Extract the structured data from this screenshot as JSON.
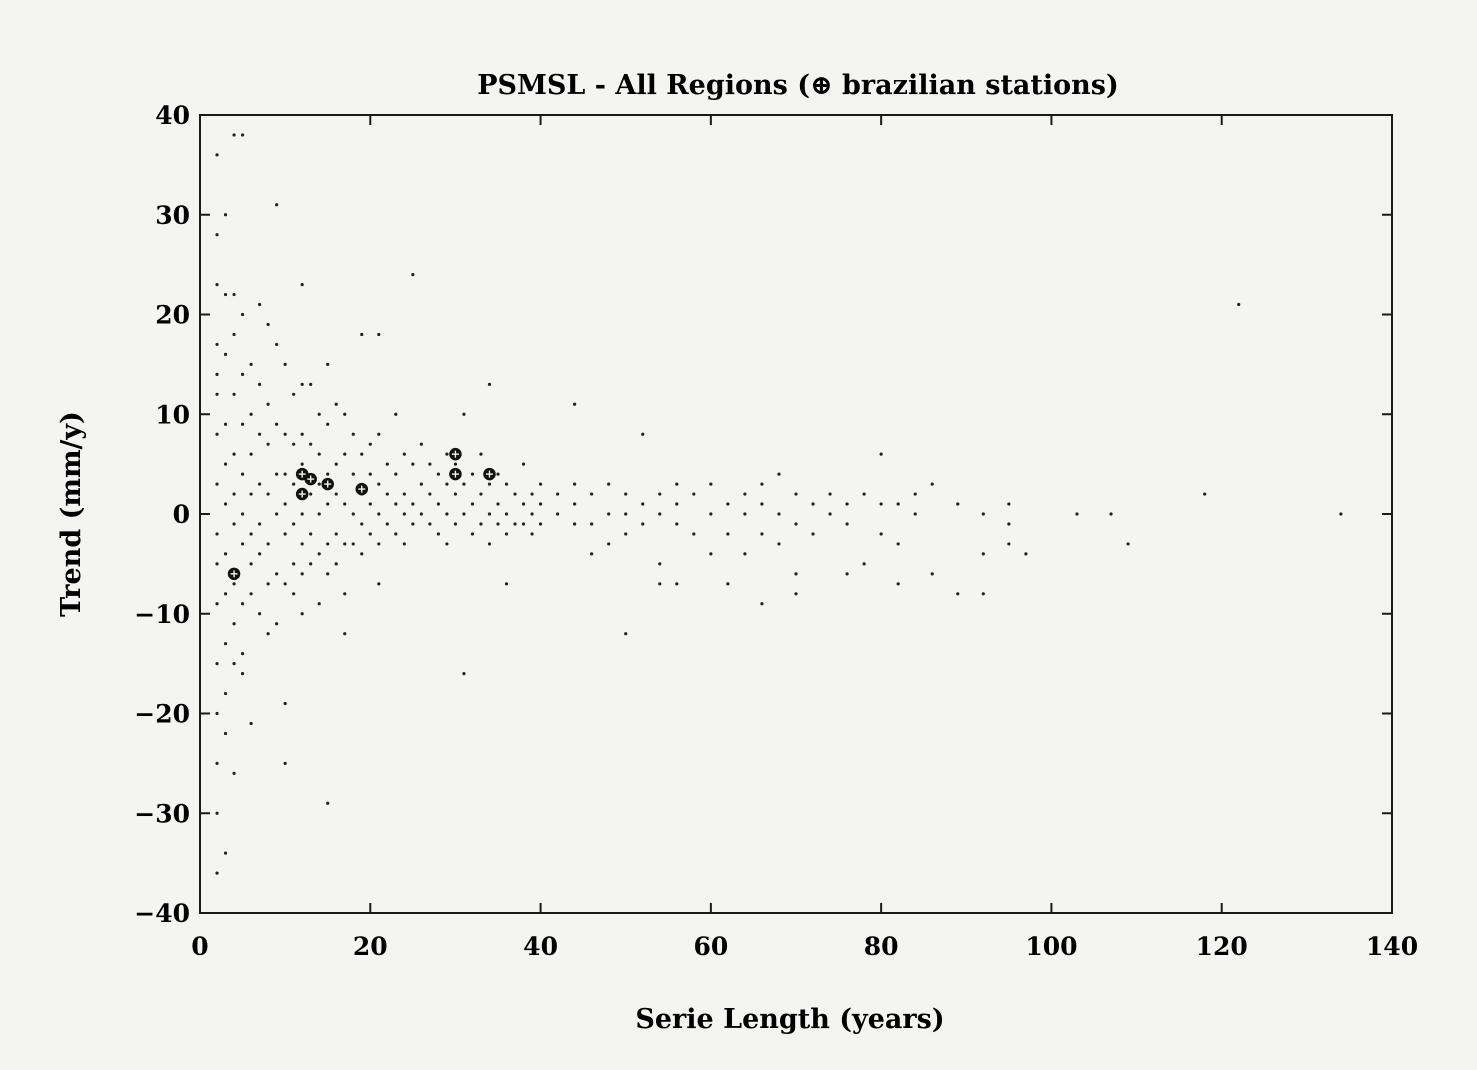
{
  "chart_data": {
    "type": "scatter",
    "title": "PSMSL - All Regions (⊕ brazilian stations)",
    "xlabel": "Serie Length (years)",
    "ylabel": "Trend (mm/y)",
    "xlim": [
      0,
      140
    ],
    "ylim": [
      -40,
      40
    ],
    "xticks": [
      0,
      20,
      40,
      60,
      80,
      100,
      120,
      140
    ],
    "yticks": [
      -40,
      -30,
      -20,
      -10,
      0,
      10,
      20,
      30,
      40
    ],
    "xtick_labels": [
      "0",
      "20",
      "40",
      "60",
      "80",
      "100",
      "120",
      "140"
    ],
    "ytick_labels": [
      "−40",
      "−30",
      "−20",
      "−10",
      "0",
      "10",
      "20",
      "30",
      "40"
    ],
    "grid": false,
    "legend": "none",
    "series": [
      {
        "marker": "dot",
        "points": [
          [
            2,
            36
          ],
          [
            2,
            28
          ],
          [
            2,
            23
          ],
          [
            2,
            17
          ],
          [
            2,
            14
          ],
          [
            2,
            12
          ],
          [
            2,
            8
          ],
          [
            2,
            3
          ],
          [
            2,
            -2
          ],
          [
            2,
            -5
          ],
          [
            2,
            -9
          ],
          [
            2,
            -15
          ],
          [
            2,
            -20
          ],
          [
            2,
            -25
          ],
          [
            2,
            -30
          ],
          [
            2,
            -36
          ],
          [
            3,
            30
          ],
          [
            3,
            22
          ],
          [
            3,
            16
          ],
          [
            3,
            9
          ],
          [
            3,
            5
          ],
          [
            3,
            1
          ],
          [
            3,
            -4
          ],
          [
            3,
            -8
          ],
          [
            3,
            -13
          ],
          [
            3,
            -18
          ],
          [
            3,
            -22
          ],
          [
            3,
            -34
          ],
          [
            4,
            38
          ],
          [
            4,
            22
          ],
          [
            4,
            18
          ],
          [
            4,
            12
          ],
          [
            4,
            6
          ],
          [
            4,
            2
          ],
          [
            4,
            -1
          ],
          [
            4,
            -7
          ],
          [
            4,
            -11
          ],
          [
            4,
            -15
          ],
          [
            4,
            -26
          ],
          [
            5,
            38
          ],
          [
            5,
            20
          ],
          [
            5,
            14
          ],
          [
            5,
            9
          ],
          [
            5,
            4
          ],
          [
            5,
            0
          ],
          [
            5,
            -3
          ],
          [
            5,
            -9
          ],
          [
            5,
            -14
          ],
          [
            5,
            -16
          ],
          [
            6,
            15
          ],
          [
            6,
            10
          ],
          [
            6,
            6
          ],
          [
            6,
            2
          ],
          [
            6,
            -2
          ],
          [
            6,
            -5
          ],
          [
            6,
            -8
          ],
          [
            6,
            -21
          ],
          [
            7,
            21
          ],
          [
            7,
            13
          ],
          [
            7,
            8
          ],
          [
            7,
            3
          ],
          [
            7,
            -1
          ],
          [
            7,
            -4
          ],
          [
            7,
            -10
          ],
          [
            8,
            19
          ],
          [
            8,
            11
          ],
          [
            8,
            7
          ],
          [
            8,
            2
          ],
          [
            8,
            -3
          ],
          [
            8,
            -7
          ],
          [
            8,
            -12
          ],
          [
            9,
            31
          ],
          [
            9,
            17
          ],
          [
            9,
            9
          ],
          [
            9,
            4
          ],
          [
            9,
            0
          ],
          [
            9,
            -6
          ],
          [
            9,
            -11
          ],
          [
            10,
            15
          ],
          [
            10,
            8
          ],
          [
            10,
            4
          ],
          [
            10,
            1
          ],
          [
            10,
            -2
          ],
          [
            10,
            -7
          ],
          [
            10,
            -19
          ],
          [
            10,
            -25
          ],
          [
            11,
            12
          ],
          [
            11,
            7
          ],
          [
            11,
            3
          ],
          [
            11,
            -1
          ],
          [
            11,
            -5
          ],
          [
            11,
            -8
          ],
          [
            12,
            23
          ],
          [
            12,
            13
          ],
          [
            12,
            8
          ],
          [
            12,
            5
          ],
          [
            12,
            0
          ],
          [
            12,
            -3
          ],
          [
            12,
            -6
          ],
          [
            12,
            -10
          ],
          [
            13,
            13
          ],
          [
            13,
            7
          ],
          [
            13,
            2
          ],
          [
            13,
            -2
          ],
          [
            13,
            -5
          ],
          [
            14,
            10
          ],
          [
            14,
            6
          ],
          [
            14,
            3
          ],
          [
            14,
            0
          ],
          [
            14,
            -4
          ],
          [
            14,
            -9
          ],
          [
            15,
            15
          ],
          [
            15,
            9
          ],
          [
            15,
            4
          ],
          [
            15,
            1
          ],
          [
            15,
            -3
          ],
          [
            15,
            -6
          ],
          [
            15,
            -29
          ],
          [
            16,
            11
          ],
          [
            16,
            5
          ],
          [
            16,
            2
          ],
          [
            16,
            -2
          ],
          [
            16,
            -5
          ],
          [
            17,
            10
          ],
          [
            17,
            6
          ],
          [
            17,
            1
          ],
          [
            17,
            -3
          ],
          [
            17,
            -8
          ],
          [
            17,
            -12
          ],
          [
            18,
            8
          ],
          [
            18,
            4
          ],
          [
            18,
            0
          ],
          [
            18,
            -3
          ],
          [
            19,
            18
          ],
          [
            19,
            6
          ],
          [
            19,
            2
          ],
          [
            19,
            -1
          ],
          [
            19,
            -4
          ],
          [
            20,
            7
          ],
          [
            20,
            4
          ],
          [
            20,
            1
          ],
          [
            20,
            -2
          ],
          [
            21,
            18
          ],
          [
            21,
            8
          ],
          [
            21,
            3
          ],
          [
            21,
            0
          ],
          [
            21,
            -3
          ],
          [
            21,
            -7
          ],
          [
            22,
            5
          ],
          [
            22,
            2
          ],
          [
            22,
            -1
          ],
          [
            23,
            10
          ],
          [
            23,
            4
          ],
          [
            23,
            1
          ],
          [
            23,
            -2
          ],
          [
            24,
            6
          ],
          [
            24,
            2
          ],
          [
            24,
            0
          ],
          [
            24,
            -3
          ],
          [
            25,
            24
          ],
          [
            25,
            5
          ],
          [
            25,
            1
          ],
          [
            25,
            -1
          ],
          [
            26,
            7
          ],
          [
            26,
            3
          ],
          [
            26,
            0
          ],
          [
            27,
            5
          ],
          [
            27,
            2
          ],
          [
            27,
            -1
          ],
          [
            28,
            4
          ],
          [
            28,
            1
          ],
          [
            28,
            -2
          ],
          [
            29,
            6
          ],
          [
            29,
            3
          ],
          [
            29,
            0
          ],
          [
            29,
            -3
          ],
          [
            30,
            5
          ],
          [
            30,
            2
          ],
          [
            30,
            -1
          ],
          [
            31,
            10
          ],
          [
            31,
            3
          ],
          [
            31,
            0
          ],
          [
            31,
            -16
          ],
          [
            32,
            4
          ],
          [
            32,
            1
          ],
          [
            32,
            -2
          ],
          [
            33,
            6
          ],
          [
            33,
            2
          ],
          [
            33,
            -1
          ],
          [
            34,
            13
          ],
          [
            34,
            3
          ],
          [
            34,
            0
          ],
          [
            34,
            -3
          ],
          [
            35,
            4
          ],
          [
            35,
            1
          ],
          [
            35,
            -1
          ],
          [
            36,
            3
          ],
          [
            36,
            0
          ],
          [
            36,
            -2
          ],
          [
            36,
            -7
          ],
          [
            37,
            2
          ],
          [
            37,
            -1
          ],
          [
            38,
            5
          ],
          [
            38,
            1
          ],
          [
            38,
            -1
          ],
          [
            39,
            2
          ],
          [
            39,
            0
          ],
          [
            39,
            -2
          ],
          [
            40,
            3
          ],
          [
            40,
            1
          ],
          [
            40,
            -1
          ],
          [
            42,
            2
          ],
          [
            42,
            0
          ],
          [
            44,
            3
          ],
          [
            44,
            1
          ],
          [
            44,
            -1
          ],
          [
            44,
            11
          ],
          [
            46,
            2
          ],
          [
            46,
            -1
          ],
          [
            46,
            -4
          ],
          [
            48,
            3
          ],
          [
            48,
            0
          ],
          [
            48,
            -3
          ],
          [
            50,
            2
          ],
          [
            50,
            0
          ],
          [
            50,
            -2
          ],
          [
            50,
            -12
          ],
          [
            52,
            1
          ],
          [
            52,
            -1
          ],
          [
            52,
            8
          ],
          [
            54,
            2
          ],
          [
            54,
            0
          ],
          [
            54,
            -5
          ],
          [
            54,
            -7
          ],
          [
            56,
            3
          ],
          [
            56,
            1
          ],
          [
            56,
            -1
          ],
          [
            56,
            -7
          ],
          [
            58,
            2
          ],
          [
            58,
            -2
          ],
          [
            60,
            3
          ],
          [
            60,
            0
          ],
          [
            60,
            -4
          ],
          [
            62,
            1
          ],
          [
            62,
            -2
          ],
          [
            62,
            -7
          ],
          [
            64,
            2
          ],
          [
            64,
            0
          ],
          [
            64,
            -4
          ],
          [
            66,
            3
          ],
          [
            66,
            1
          ],
          [
            66,
            -2
          ],
          [
            66,
            -9
          ],
          [
            68,
            4
          ],
          [
            68,
            0
          ],
          [
            68,
            -3
          ],
          [
            70,
            2
          ],
          [
            70,
            -1
          ],
          [
            70,
            -6
          ],
          [
            70,
            -8
          ],
          [
            72,
            1
          ],
          [
            72,
            -2
          ],
          [
            74,
            2
          ],
          [
            74,
            0
          ],
          [
            76,
            1
          ],
          [
            76,
            -1
          ],
          [
            76,
            -6
          ],
          [
            78,
            2
          ],
          [
            78,
            -5
          ],
          [
            80,
            6
          ],
          [
            80,
            1
          ],
          [
            80,
            -2
          ],
          [
            82,
            1
          ],
          [
            82,
            -3
          ],
          [
            82,
            -7
          ],
          [
            84,
            2
          ],
          [
            84,
            0
          ],
          [
            86,
            3
          ],
          [
            86,
            -6
          ],
          [
            89,
            1
          ],
          [
            89,
            -8
          ],
          [
            92,
            0
          ],
          [
            92,
            -4
          ],
          [
            92,
            -8
          ],
          [
            95,
            1
          ],
          [
            95,
            -1
          ],
          [
            95,
            -3
          ],
          [
            97,
            -4
          ],
          [
            103,
            0
          ],
          [
            107,
            0
          ],
          [
            109,
            -3
          ],
          [
            118,
            2
          ],
          [
            122,
            21
          ],
          [
            134,
            0
          ]
        ]
      },
      {
        "marker": "circled-plus",
        "points": [
          [
            4,
            -6
          ],
          [
            12,
            4
          ],
          [
            12,
            2
          ],
          [
            13,
            3.5
          ],
          [
            15,
            3
          ],
          [
            19,
            2.5
          ],
          [
            30,
            6
          ],
          [
            30,
            4
          ],
          [
            34,
            4
          ]
        ]
      }
    ]
  }
}
